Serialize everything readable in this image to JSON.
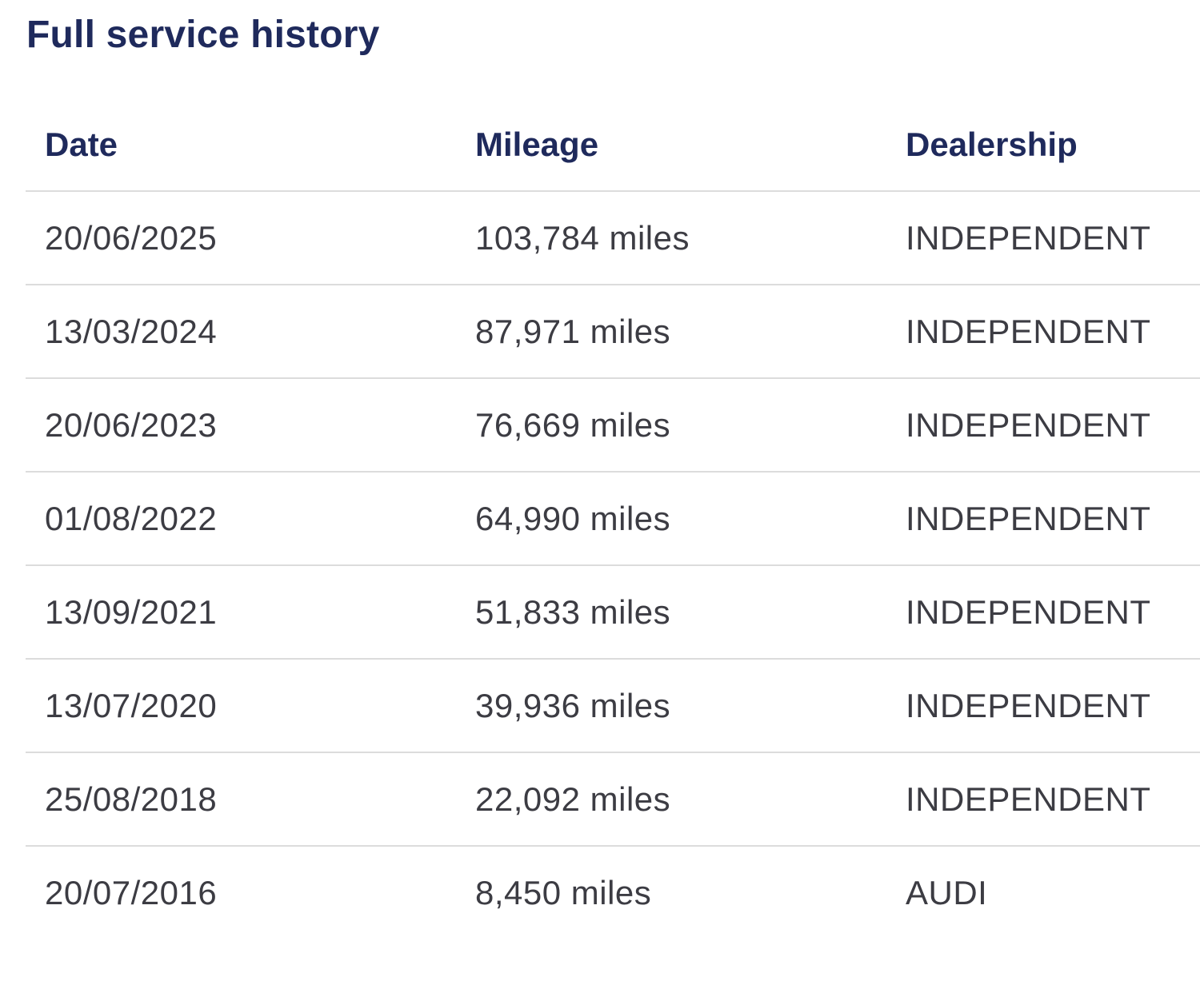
{
  "page": {
    "title": "Full service history"
  },
  "table": {
    "headers": {
      "date": "Date",
      "mileage": "Mileage",
      "dealership": "Dealership"
    },
    "rows": [
      {
        "date": "20/06/2025",
        "mileage": "103,784 miles",
        "dealership": "INDEPENDENT"
      },
      {
        "date": "13/03/2024",
        "mileage": "87,971 miles",
        "dealership": "INDEPENDENT"
      },
      {
        "date": "20/06/2023",
        "mileage": "76,669 miles",
        "dealership": "INDEPENDENT"
      },
      {
        "date": "01/08/2022",
        "mileage": "64,990 miles",
        "dealership": "INDEPENDENT"
      },
      {
        "date": "13/09/2021",
        "mileage": "51,833 miles",
        "dealership": "INDEPENDENT"
      },
      {
        "date": "13/07/2020",
        "mileage": "39,936 miles",
        "dealership": "INDEPENDENT"
      },
      {
        "date": "25/08/2018",
        "mileage": "22,092 miles",
        "dealership": "INDEPENDENT"
      },
      {
        "date": "20/07/2016",
        "mileage": "8,450 miles",
        "dealership": "AUDI"
      }
    ]
  },
  "colors": {
    "heading": "#1f2a5c",
    "body_text": "#3c3c43",
    "divider": "#dcdcdc",
    "background": "#ffffff"
  }
}
